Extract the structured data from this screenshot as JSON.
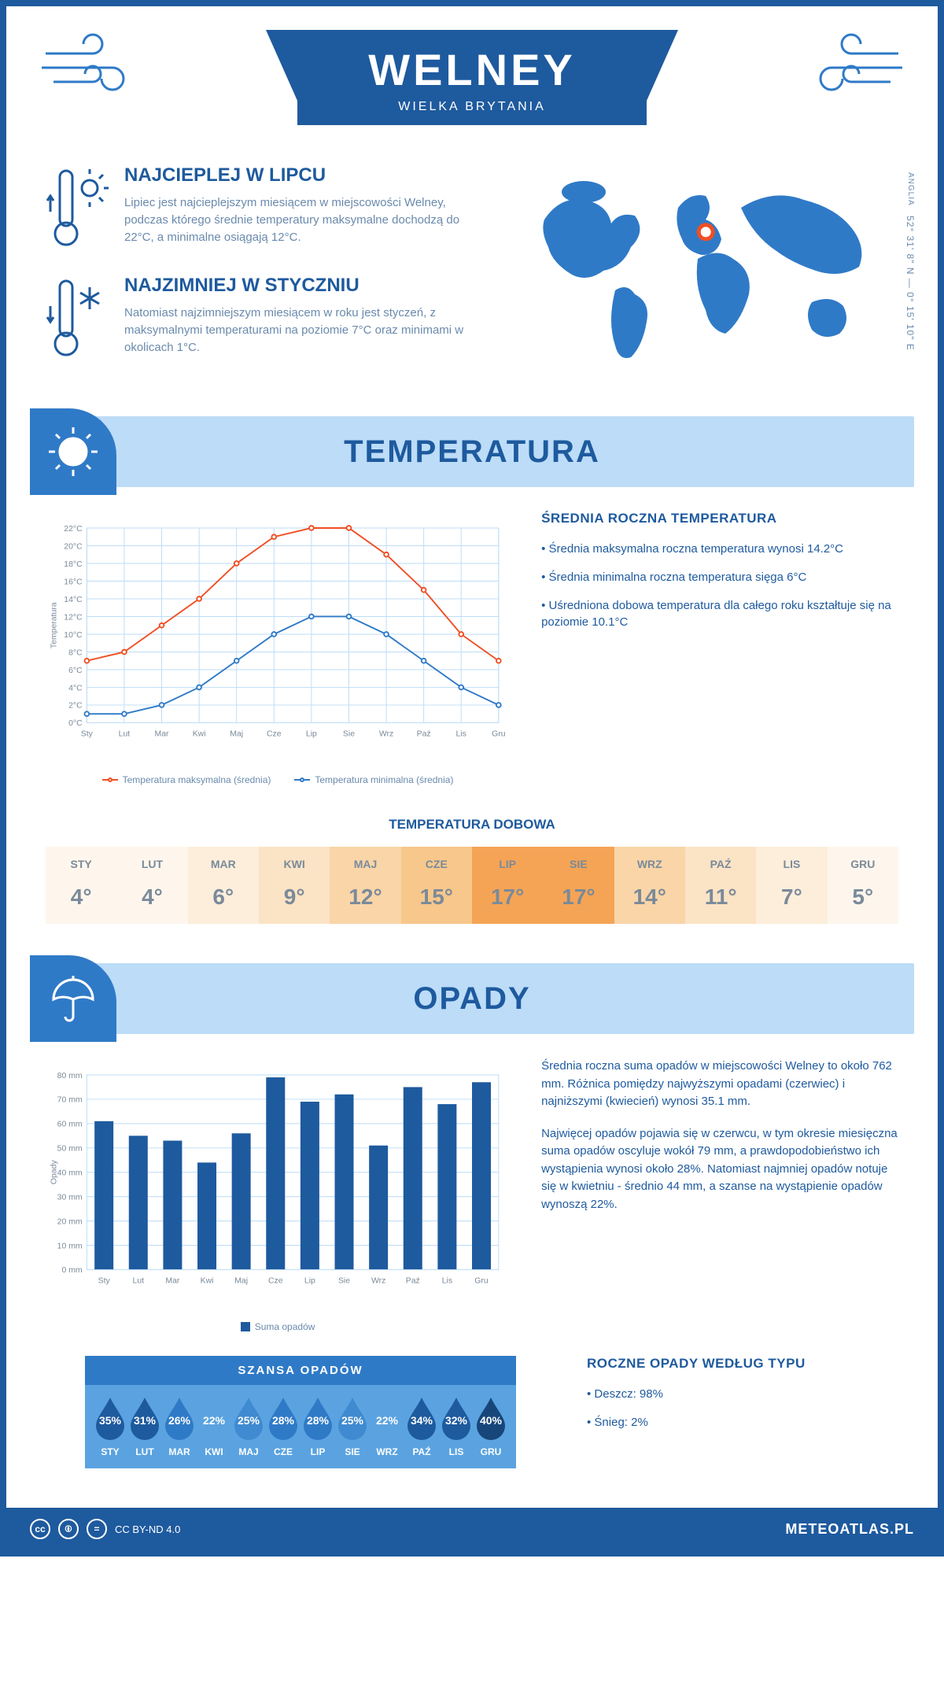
{
  "header": {
    "city": "WELNEY",
    "country": "WIELKA BRYTANIA"
  },
  "coords": {
    "region": "ANGLIA",
    "text": "52° 31' 8\" N — 0° 15' 10\" E"
  },
  "map": {
    "color": "#2f7ac7",
    "marker_color": "#f04e23",
    "marker_xy": [
      0.49,
      0.33
    ]
  },
  "summary": {
    "hot": {
      "title": "NAJCIEPLEJ W LIPCU",
      "text": "Lipiec jest najcieplejszym miesiącem w miejscowości Welney, podczas którego średnie temperatury maksymalne dochodzą do 22°C, a minimalne osiągają 12°C."
    },
    "cold": {
      "title": "NAJZIMNIEJ W STYCZNIU",
      "text": "Natomiast najzimniejszym miesiącem w roku jest styczeń, z maksymalnymi temperaturami na poziomie 7°C oraz minimami w okolicach 1°C."
    }
  },
  "temperature_section": {
    "title": "TEMPERATURA",
    "y_label": "Temperatura",
    "chart": {
      "type": "line",
      "months": [
        "Sty",
        "Lut",
        "Mar",
        "Kwi",
        "Maj",
        "Cze",
        "Lip",
        "Sie",
        "Wrz",
        "Paź",
        "Lis",
        "Gru"
      ],
      "series": [
        {
          "name": "Temperatura maksymalna (średnia)",
          "color": "#f04e23",
          "values": [
            7,
            8,
            11,
            14,
            18,
            21,
            22,
            22,
            19,
            15,
            10,
            7
          ]
        },
        {
          "name": "Temperatura minimalna (średnia)",
          "color": "#2f7ac7",
          "values": [
            1,
            1,
            2,
            4,
            7,
            10,
            12,
            12,
            10,
            7,
            4,
            2
          ]
        }
      ],
      "ylim": [
        0,
        22
      ],
      "ytick_step": 2,
      "tick_suffix": "°C",
      "grid_color": "#bcdcf8",
      "background": "#ffffff",
      "line_width": 2,
      "marker_radius": 3,
      "axis_fontsize": 11
    },
    "side": {
      "title": "ŚREDNIA ROCZNA TEMPERATURA",
      "bullets": [
        "• Średnia maksymalna roczna temperatura wynosi 14.2°C",
        "• Średnia minimalna roczna temperatura sięga 6°C",
        "• Uśredniona dobowa temperatura dla całego roku kształtuje się na poziomie 10.1°C"
      ]
    },
    "daily": {
      "title": "TEMPERATURA DOBOWA",
      "months": [
        "STY",
        "LUT",
        "MAR",
        "KWI",
        "MAJ",
        "CZE",
        "LIP",
        "SIE",
        "WRZ",
        "PAŹ",
        "LIS",
        "GRU"
      ],
      "values": [
        "4°",
        "4°",
        "6°",
        "9°",
        "12°",
        "15°",
        "17°",
        "17°",
        "14°",
        "11°",
        "7°",
        "5°"
      ],
      "colors": [
        "#fef6ec",
        "#fef6ec",
        "#fceedb",
        "#fbe3c5",
        "#f9d5a8",
        "#f7c78b",
        "#f5a455",
        "#f5a455",
        "#f9d5a8",
        "#fbe3c5",
        "#fceedb",
        "#fef6ec"
      ]
    }
  },
  "precip_section": {
    "title": "OPADY",
    "y_label": "Opady",
    "chart": {
      "type": "bar",
      "months": [
        "Sty",
        "Lut",
        "Mar",
        "Kwi",
        "Maj",
        "Cze",
        "Lip",
        "Sie",
        "Wrz",
        "Paź",
        "Lis",
        "Gru"
      ],
      "values": [
        61,
        55,
        53,
        44,
        56,
        79,
        69,
        72,
        51,
        75,
        68,
        77
      ],
      "bar_color": "#1e5a9e",
      "ylim": [
        0,
        80
      ],
      "ytick_step": 10,
      "tick_suffix": " mm",
      "grid_color": "#bcdcf8",
      "background": "#ffffff",
      "bar_width": 0.55,
      "legend_label": "Suma opadów",
      "axis_fontsize": 11
    },
    "text": {
      "p1": "Średnia roczna suma opadów w miejscowości Welney to około 762 mm. Różnica pomiędzy najwyższymi opadami (czerwiec) i najniższymi (kwiecień) wynosi 35.1 mm.",
      "p2": "Najwięcej opadów pojawia się w czerwcu, w tym okresie miesięczna suma opadów oscyluje wokół 79 mm, a prawdopodobieństwo ich wystąpienia wynosi około 28%. Natomiast najmniej opadów notuje się w kwietniu - średnio 44 mm, a szanse na wystąpienie opadów wynoszą 22%."
    },
    "chance": {
      "title": "SZANSA OPADÓW",
      "months": [
        "STY",
        "LUT",
        "MAR",
        "KWI",
        "MAJ",
        "CZE",
        "LIP",
        "SIE",
        "WRZ",
        "PAŹ",
        "LIS",
        "GRU"
      ],
      "values": [
        "35%",
        "31%",
        "26%",
        "22%",
        "25%",
        "28%",
        "28%",
        "25%",
        "22%",
        "34%",
        "32%",
        "40%"
      ],
      "drop_colors": [
        "#1e5a9e",
        "#1e5a9e",
        "#2f7ac7",
        "#5aa3e0",
        "#3f8ad0",
        "#2f7ac7",
        "#2f7ac7",
        "#3f8ad0",
        "#5aa3e0",
        "#1e5a9e",
        "#1e5a9e",
        "#17467a"
      ]
    },
    "by_type": {
      "title": "ROCZNE OPADY WEDŁUG TYPU",
      "bullets": [
        "• Deszcz: 98%",
        "• Śnieg: 2%"
      ]
    }
  },
  "footer": {
    "license": "CC BY-ND 4.0",
    "site": "METEOATLAS.PL"
  },
  "palette": {
    "primary": "#1e5a9e",
    "light": "#bcdcf8",
    "mid": "#2f7ac7",
    "accent": "#f04e23"
  }
}
